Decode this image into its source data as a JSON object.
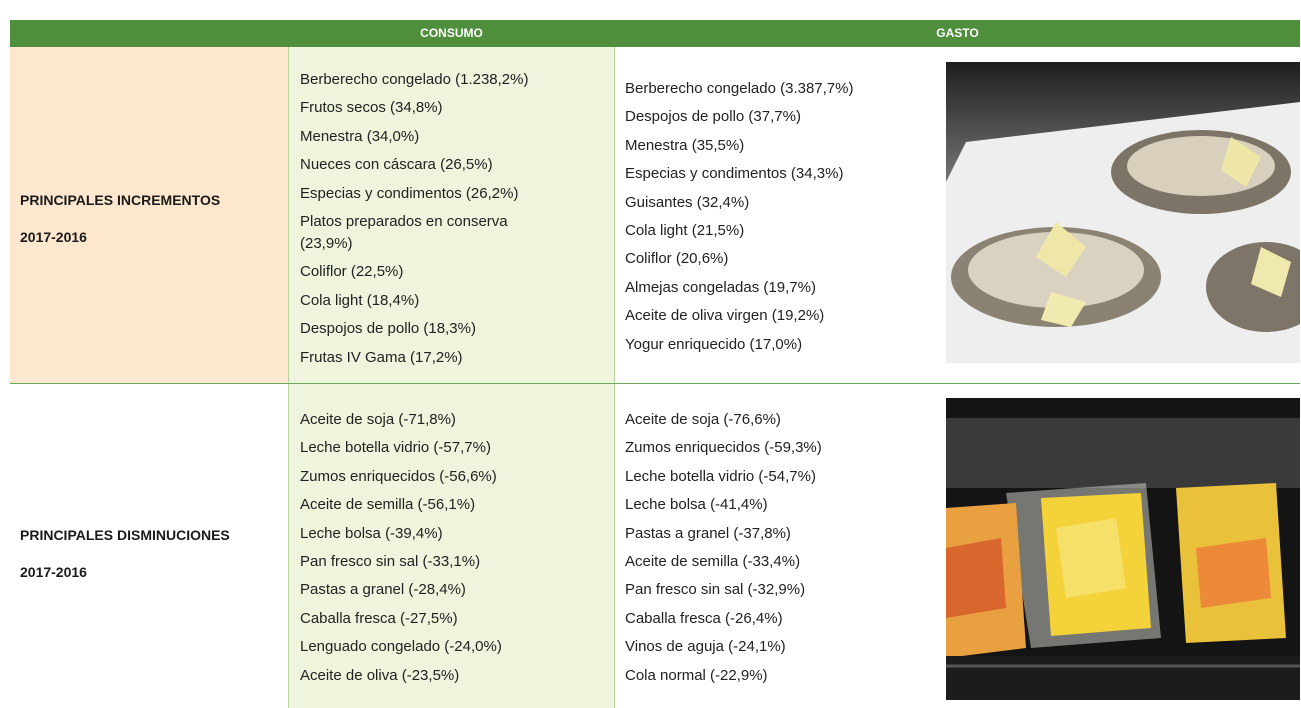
{
  "header": {
    "consumo": "CONSUMO",
    "gasto": "GASTO"
  },
  "rows": [
    {
      "label": [
        "PRINCIPALES INCREMENTOS",
        "2017-2016"
      ],
      "consumo": [
        "Berberecho congelado (1.238,2%)",
        "Frutos secos (34,8%)",
        "Menestra (34,0%)",
        "Nueces con cáscara (26,5%)",
        "Especias y condimentos (26,2%)",
        "Platos preparados en conserva (23,9%)",
        "Coliflor (22,5%)",
        "Cola light (18,4%)",
        "Despojos de pollo (18,3%)",
        "Frutas IV Gama (17,2%)"
      ],
      "gasto": [
        "Berberecho congelado (3.387,7%)",
        "Despojos de pollo (37,7%)",
        "Menestra (35,5%)",
        "Especias y condimentos (34,3%)",
        "Guisantes (32,4%)",
        "Cola light (21,5%)",
        "Coliflor (20,6%)",
        "Almejas congeladas (19,7%)",
        "Aceite de oliva virgen (19,2%)",
        "Yogur enriquecido (17,0%)"
      ]
    },
    {
      "label": [
        "PRINCIPALES DISMINUCIONES",
        "2017-2016"
      ],
      "consumo": [
        "Aceite de soja (-71,8%)",
        "Leche botella vidrio (-57,7%)",
        "Zumos enriquecidos (-56,6%)",
        "Aceite de semilla (-56,1%)",
        "Leche bolsa (-39,4%)",
        "Pan fresco sin sal (-33,1%)",
        "Pastas a granel (-28,4%)",
        "Caballa fresca (-27,5%)",
        "Lenguado congelado (-24,0%)",
        "Aceite de oliva (-23,5%)"
      ],
      "gasto": [
        "Aceite de soja (-76,6%)",
        "Zumos enriquecidos (-59,3%)",
        "Leche botella vidrio (-54,7%)",
        "Leche bolsa (-41,4%)",
        "Pastas a granel (-37,8%)",
        "Aceite de semilla (-33,4%)",
        "Pan fresco sin sal (-32,9%)",
        "Caballa fresca (-26,4%)",
        "Vinos de aguja (-24,1%)",
        "Cola normal (-22,9%)"
      ]
    }
  ]
}
